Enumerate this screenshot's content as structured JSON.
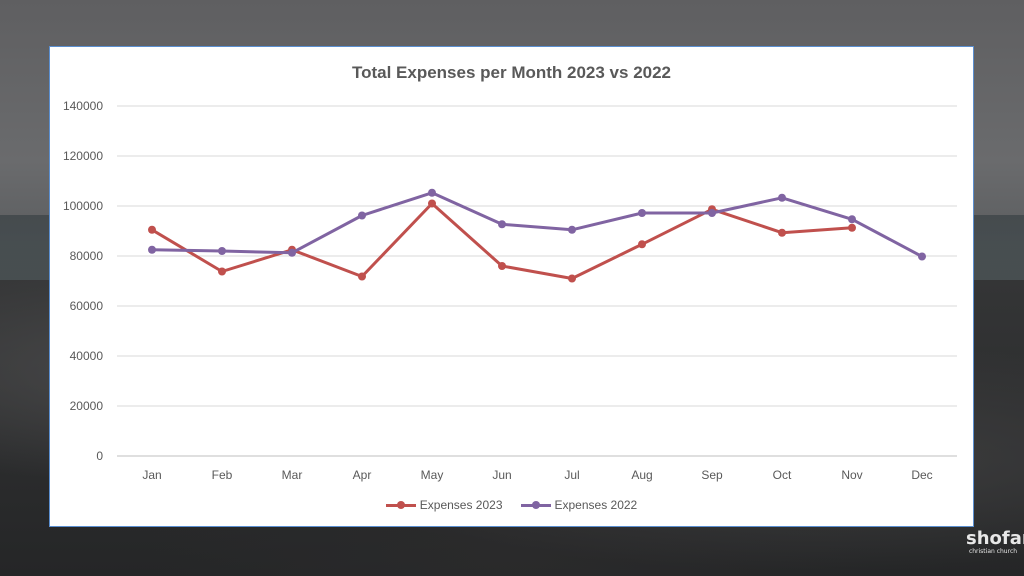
{
  "chart_data": {
    "type": "line",
    "title": "Total Expenses per Month 2023 vs 2022",
    "categories": [
      "Jan",
      "Feb",
      "Mar",
      "Apr",
      "May",
      "Jun",
      "Jul",
      "Aug",
      "Sep",
      "Oct",
      "Nov",
      "Dec"
    ],
    "ylim": [
      0,
      140000
    ],
    "yticks": [
      "0",
      "20000",
      "40000",
      "60000",
      "80000",
      "100000",
      "120000",
      "140000"
    ],
    "grid": true,
    "legend_position": "bottom",
    "series": [
      {
        "name": "Expenses 2023",
        "color": "#c0504d",
        "values": [
          90500,
          73800,
          82500,
          71800,
          101000,
          76000,
          71000,
          84700,
          98700,
          89300,
          91300,
          null
        ]
      },
      {
        "name": "Expenses 2022",
        "color": "#8064a2",
        "values": [
          82500,
          82000,
          81300,
          96200,
          105300,
          92700,
          90500,
          97200,
          97200,
          103300,
          94700,
          79800
        ]
      }
    ]
  },
  "logo": {
    "main": "shofar",
    "sub": "christian church"
  }
}
